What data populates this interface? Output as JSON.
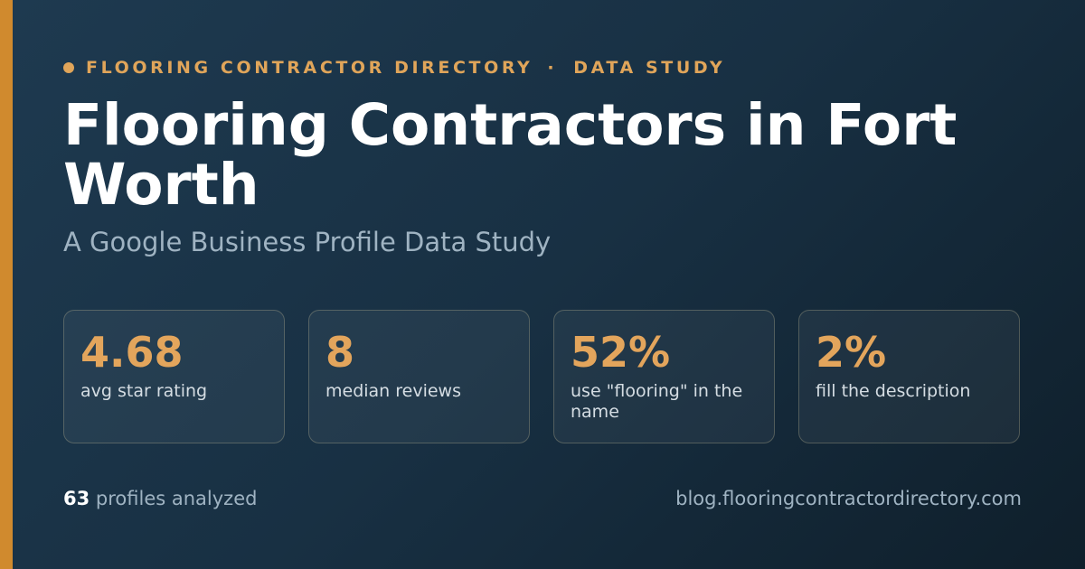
{
  "header": {
    "eyebrow": [
      "FLOORING CONTRACTOR DIRECTORY",
      "·",
      "DATA STUDY"
    ],
    "title": "Flooring Contractors in Fort Worth",
    "subtitle": "A Google Business Profile Data Study"
  },
  "stats": [
    {
      "value": "4.68",
      "label": "avg star rating"
    },
    {
      "value": "8",
      "label": "median reviews"
    },
    {
      "value": "52%",
      "label": "use \"flooring\" in the name"
    },
    {
      "value": "2%",
      "label": "fill the description"
    }
  ],
  "footer": {
    "count": "63",
    "count_label": "profiles analyzed",
    "url": "blog.flooringcontractordirectory.com"
  }
}
